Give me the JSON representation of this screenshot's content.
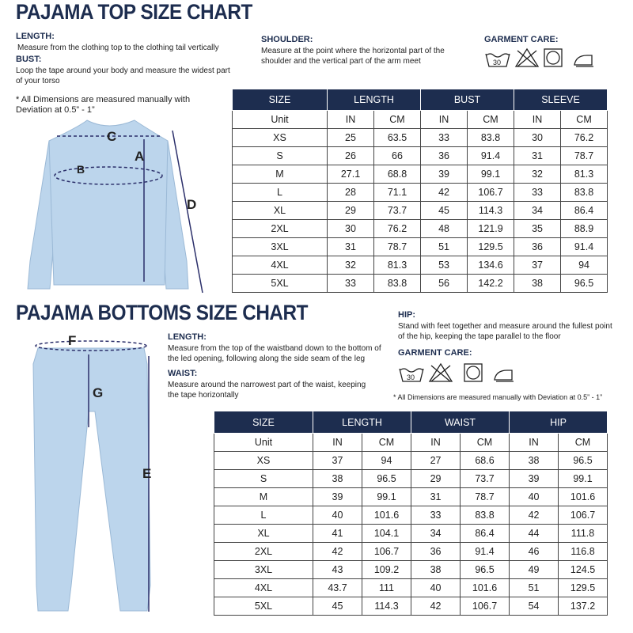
{
  "top": {
    "title": "PAJAMA TOP SIZE CHART",
    "length": {
      "label": "LENGTH:",
      "text": "Measure from the clothing top to the clothing tail vertically"
    },
    "bust": {
      "label": "BUST:",
      "text": "Loop the tape around your body and measure the widest part of your torso"
    },
    "shoulder": {
      "label": "SHOULDER:",
      "text": "Measure at the point where the horizontal part of the shoulder and the vertical part of the arm meet"
    },
    "care": {
      "label": "GARMENT CARE:",
      "wash_temp": "30"
    },
    "note": "* All Dimensions are measured manually with Deviation at 0.5” - 1”",
    "diagram": {
      "a": "A",
      "b": "B",
      "c": "C",
      "d": "D"
    },
    "table": {
      "header": [
        "SIZE",
        "LENGTH",
        "BUST",
        "SLEEVE"
      ],
      "units": [
        "Unit",
        "IN",
        "CM",
        "IN",
        "CM",
        "IN",
        "CM"
      ],
      "rows": [
        [
          "XS",
          25,
          63.5,
          33,
          83.8,
          30,
          76.2
        ],
        [
          "S",
          26,
          66,
          36,
          91.4,
          31,
          78.7
        ],
        [
          "M",
          27.1,
          68.8,
          39,
          99.1,
          32,
          81.3
        ],
        [
          "L",
          28,
          71.1,
          42,
          106.7,
          33,
          83.8
        ],
        [
          "XL",
          29,
          73.7,
          45,
          114.3,
          34,
          86.4
        ],
        [
          "2XL",
          30,
          76.2,
          48,
          121.9,
          35,
          88.9
        ],
        [
          "3XL",
          31,
          78.7,
          51,
          129.5,
          36,
          91.4
        ],
        [
          "4XL",
          32,
          81.3,
          53,
          134.6,
          37,
          94
        ],
        [
          "5XL",
          33,
          83.8,
          56,
          142.2,
          38,
          96.5
        ]
      ]
    }
  },
  "bottoms": {
    "title": "PAJAMA BOTTOMS SIZE CHART",
    "length": {
      "label": "LENGTH:",
      "text": "Measure from the top of the waistband down to the bottom of the led opening, following along the side seam of the leg"
    },
    "waist": {
      "label": "WAIST:",
      "text": "Measure around the narrowest part of the waist, keeping the tape horizontally"
    },
    "hip": {
      "label": "HIP:",
      "text": "Stand with feet together and measure around the fullest point of the hip, keeping the tape parallel to the floor"
    },
    "care": {
      "label": "GARMENT CARE:",
      "wash_temp": "30"
    },
    "note": "* All Dimensions are measured manually with Deviation at 0.5” - 1”",
    "diagram": {
      "e": "E",
      "f": "F",
      "g": "G"
    },
    "table": {
      "header": [
        "SIZE",
        "LENGTH",
        "WAIST",
        "HIP"
      ],
      "units": [
        "Unit",
        "IN",
        "CM",
        "IN",
        "CM",
        "IN",
        "CM"
      ],
      "rows": [
        [
          "XS",
          37,
          94,
          27,
          68.6,
          38,
          96.5
        ],
        [
          "S",
          38,
          96.5,
          29,
          73.7,
          39,
          99.1
        ],
        [
          "M",
          39,
          99.1,
          31,
          78.7,
          40,
          101.6
        ],
        [
          "L",
          40,
          101.6,
          33,
          83.8,
          42,
          106.7
        ],
        [
          "XL",
          41,
          104.1,
          34,
          86.4,
          44,
          111.8
        ],
        [
          "2XL",
          42,
          106.7,
          36,
          91.4,
          46,
          116.8
        ],
        [
          "3XL",
          43,
          109.2,
          38,
          96.5,
          49,
          124.5
        ],
        [
          "4XL",
          43.7,
          111,
          40,
          101.6,
          51,
          129.5
        ],
        [
          "5XL",
          45,
          114.3,
          42,
          106.7,
          54,
          137.2
        ]
      ]
    }
  }
}
